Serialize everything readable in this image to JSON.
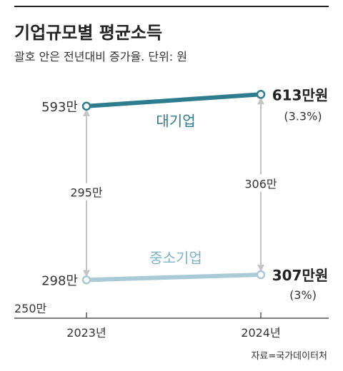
{
  "title": "기업규모별 평균소득",
  "subtitle": "괄호 안은 전년대비 증가율. 단위: 원",
  "source": "자료=국가데이터처",
  "colors": {
    "large": "#2e7d8e",
    "small": "#a9cad6",
    "large_label": "#2e7d8e",
    "small_label": "#7fb3c7",
    "arrow": "#c4c4c4",
    "axis": "#555555"
  },
  "chart_data": {
    "type": "line",
    "title": "기업규모별 평균소득",
    "subtitle": "괄호 안은 전년대비 증가율. 단위: 원",
    "x": [
      "2023년",
      "2024년"
    ],
    "y_baseline_label": "250만",
    "ylim": [
      250,
      640
    ],
    "unit": "만원",
    "series": [
      {
        "name": "대기업",
        "values": [
          593,
          613
        ],
        "start_label": "593만",
        "end_label": "613만원",
        "growth_label": "(3.3%)"
      },
      {
        "name": "중소기업",
        "values": [
          298,
          307
        ],
        "start_label": "298만",
        "end_label": "307만원",
        "growth_label": "(3%)"
      }
    ],
    "gaps": [
      {
        "x_index": 0,
        "value": 295,
        "label": "295만"
      },
      {
        "x_index": 1,
        "value": 306,
        "label": "306만"
      }
    ],
    "grid": false
  }
}
